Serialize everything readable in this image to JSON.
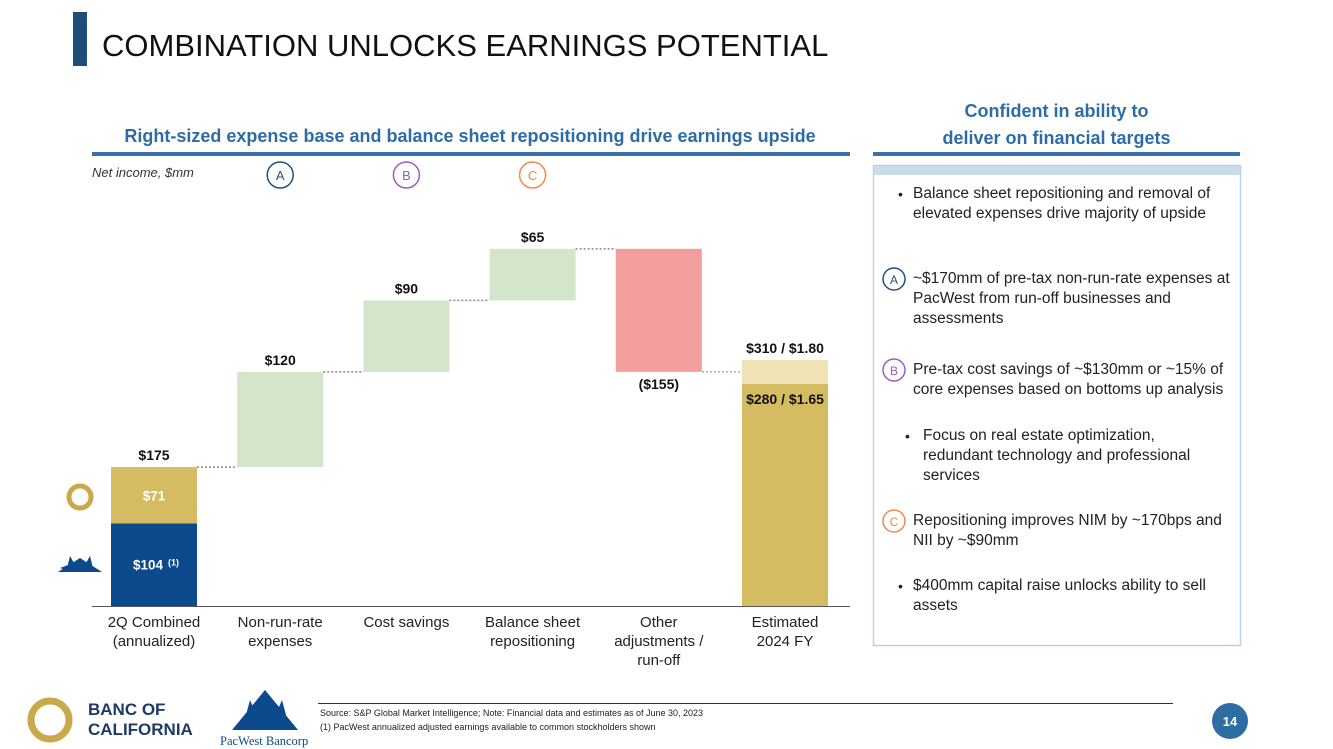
{
  "title": "COMBINATION UNLOCKS EARNINGS POTENTIAL",
  "chart_data": {
    "type": "waterfall",
    "title": "Right-sized expense base and balance sheet repositioning drive earnings upside",
    "subtitle": "Net income, $mm",
    "categories": [
      "2Q Combined\n(annualized)",
      "Non-run-rate\nexpenses",
      "Cost savings",
      "Balance sheet\nrepositioning",
      "Other\nadjustments /\nrun-off",
      "Estimated\n2024 FY"
    ],
    "markers": [
      null,
      "A",
      "B",
      "C",
      null,
      null
    ],
    "marker_colors": [
      null,
      "#24507f",
      "#9a5cc0",
      "#ee8a4e",
      null,
      null
    ],
    "values": [
      175,
      120,
      90,
      65,
      -155,
      310
    ],
    "value_labels": [
      "$175",
      "$120",
      "$90",
      "$65",
      "($155)",
      "$310 / $1.80"
    ],
    "increase_color": "#d3e5cb",
    "decrease_color": "#f29e9c",
    "first_stack": {
      "values": [
        104,
        71
      ],
      "value_labels": [
        "$104",
        "$71"
      ],
      "colors": [
        "#0d4a8c",
        "#d5bb62"
      ],
      "note": "(1)"
    },
    "last_stack": {
      "values": [
        280,
        30
      ],
      "value_labels": [
        "$280 / $1.65",
        null
      ],
      "colors": [
        "#d5bb62",
        "#efe3b6"
      ]
    },
    "ylim": [
      0,
      480
    ]
  },
  "panel": {
    "title": "Confident in ability to\ndeliver on financial targets",
    "items": [
      {
        "marker": null,
        "color": null,
        "text": "Balance sheet repositioning and removal of elevated expenses drive majority of upside"
      },
      {
        "marker": "A",
        "color": "#24507f",
        "text": "~$170mm of pre-tax non-run-rate expenses at PacWest from run-off businesses and assessments"
      },
      {
        "marker": "B",
        "color": "#9a5cc0",
        "text": "Pre-tax cost savings of ~$130mm or ~15% of core expenses based on bottoms up analysis",
        "sub": [
          "Focus on real estate optimization, redundant technology and professional services"
        ]
      },
      {
        "marker": "C",
        "color": "#ee8a4e",
        "text": "Repositioning improves NIM by ~170bps and NII by ~$90mm"
      },
      {
        "marker": null,
        "color": null,
        "text": "$400mm capital raise unlocks ability to sell assets"
      }
    ]
  },
  "footer": {
    "source": "Source: S&P Global Market Intelligence; Note: Financial data and estimates as of June 30, 2023",
    "note": "(1) PacWest annualized adjusted earnings available to common stockholders shown",
    "page": "14",
    "logo_banc": "BANC OF\nCALIFORNIA",
    "logo_pacwest": "PacWest Bancorp"
  }
}
